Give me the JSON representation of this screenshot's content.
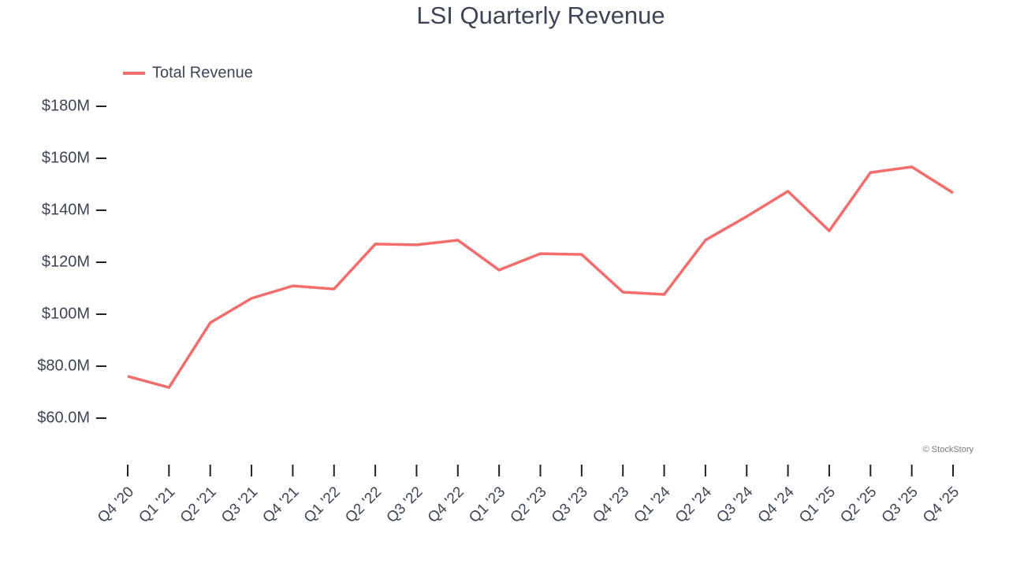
{
  "chart_data": {
    "type": "line",
    "title": "LSI Quarterly Revenue",
    "categories": [
      "Q4 '20",
      "Q1 '21",
      "Q2 '21",
      "Q3 '21",
      "Q4 '21",
      "Q1 '22",
      "Q2 '22",
      "Q3 '22",
      "Q4 '22",
      "Q1 '23",
      "Q2 '23",
      "Q3 '23",
      "Q4 '23",
      "Q1 '24",
      "Q2 '24",
      "Q3 '24",
      "Q4 '24",
      "Q1 '25",
      "Q2 '25",
      "Q3 '25",
      "Q4 '25"
    ],
    "series": [
      {
        "name": "Total Revenue",
        "color": "#f46d6d",
        "values": [
          76.1,
          71.8,
          96.7,
          106.1,
          110.9,
          109.7,
          127.0,
          126.7,
          128.5,
          117.0,
          123.3,
          123.0,
          108.5,
          107.6,
          128.5,
          137.6,
          147.3,
          132.1,
          154.5,
          156.7,
          146.7
        ]
      }
    ],
    "ylim": [
      42,
      184
    ],
    "yticks": [
      {
        "value": 60,
        "label": "$60.0M"
      },
      {
        "value": 80,
        "label": "$80.0M"
      },
      {
        "value": 100,
        "label": "$100M"
      },
      {
        "value": 120,
        "label": "$120M"
      },
      {
        "value": 140,
        "label": "$140M"
      },
      {
        "value": 160,
        "label": "$160M"
      },
      {
        "value": 180,
        "label": "$180M"
      }
    ],
    "legend": "top-left",
    "credit": "© StockStory"
  }
}
